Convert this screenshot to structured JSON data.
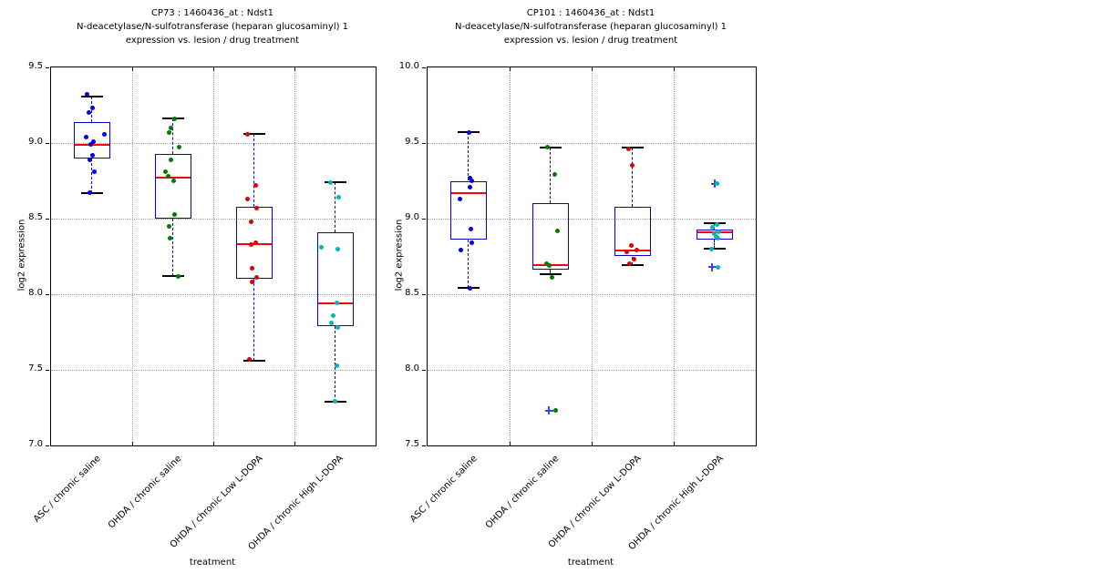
{
  "chart_data": {
    "type": "boxplot",
    "colors": {
      "box": "#0000dd",
      "whisker": "#0000dd",
      "median": "#ff0000",
      "cap": "#000000",
      "grid": "#9e9e9e",
      "flier": "#4040ff"
    },
    "panels": [
      {
        "title_lines": [
          "CP73 : 1460436_at : Ndst1",
          "N-deacetylase/N-sulfotransferase (heparan glucosaminyl) 1",
          "expression vs. lesion / drug treatment"
        ],
        "ylabel": "log2 expression",
        "xlabel": "treatment",
        "ylim": [
          7.0,
          9.5
        ],
        "yticks": [
          9.5,
          9.0,
          8.5,
          8.0,
          7.5,
          7.0
        ],
        "ytick_labels": [
          "9.5",
          "9.0",
          "8.5",
          "8.0",
          "7.5",
          "7.0"
        ],
        "grid": true,
        "categories": [
          "ASC / chronic saline",
          "OHDA / chronic saline",
          "OHDA / chronic Low L-DOPA",
          "OHDA / chronic High L-DOPA"
        ],
        "groups": [
          {
            "name": "ASC / chronic saline",
            "color": "#0000e0",
            "box": {
              "q1": 8.9,
              "median": 8.99,
              "q3": 9.14,
              "lo": 8.67,
              "hi": 9.31
            },
            "points": [
              [
                9.32,
                -5
              ],
              [
                9.23,
                1
              ],
              [
                9.2,
                -3
              ],
              [
                9.06,
                14
              ],
              [
                9.04,
                -6
              ],
              [
                9.01,
                2
              ],
              [
                8.99,
                -1
              ],
              [
                8.92,
                1
              ],
              [
                8.89,
                -2
              ],
              [
                8.81,
                3
              ],
              [
                8.67,
                -2
              ]
            ],
            "fliers": []
          },
          {
            "name": "OHDA / chronic saline",
            "color": "#007a00",
            "box": {
              "q1": 8.5,
              "median": 8.77,
              "q3": 8.93,
              "lo": 8.12,
              "hi": 9.16
            },
            "points": [
              [
                9.16,
                2
              ],
              [
                9.1,
                -2
              ],
              [
                9.07,
                -4
              ],
              [
                8.97,
                7
              ],
              [
                8.89,
                -2
              ],
              [
                8.81,
                -8
              ],
              [
                8.78,
                -5
              ],
              [
                8.75,
                1
              ],
              [
                8.53,
                2
              ],
              [
                8.45,
                -4
              ],
              [
                8.37,
                -3
              ],
              [
                8.12,
                6
              ]
            ],
            "fliers": []
          },
          {
            "name": "OHDA / chronic Low L-DOPA",
            "color": "#e00000",
            "box": {
              "q1": 8.1,
              "median": 8.33,
              "q3": 8.58,
              "lo": 7.56,
              "hi": 9.06
            },
            "points": [
              [
                9.06,
                -7
              ],
              [
                8.72,
                2
              ],
              [
                8.63,
                -7
              ],
              [
                8.57,
                3
              ],
              [
                8.48,
                -3
              ],
              [
                8.34,
                2
              ],
              [
                8.33,
                -3
              ],
              [
                8.17,
                -2
              ],
              [
                8.11,
                3
              ],
              [
                8.08,
                -2
              ],
              [
                7.57,
                -5
              ]
            ],
            "fliers": []
          },
          {
            "name": "OHDA / chronic High L-DOPA",
            "color": "#00b7b7",
            "box": {
              "q1": 7.79,
              "median": 7.94,
              "q3": 8.41,
              "lo": 7.29,
              "hi": 8.74
            },
            "points": [
              [
                8.74,
                -5
              ],
              [
                8.64,
                4
              ],
              [
                8.31,
                -15
              ],
              [
                8.3,
                3
              ],
              [
                7.94,
                2
              ],
              [
                7.86,
                -2
              ],
              [
                7.81,
                -4
              ],
              [
                7.78,
                3
              ],
              [
                7.53,
                2
              ],
              [
                7.29,
                0
              ]
            ],
            "fliers": []
          }
        ]
      },
      {
        "title_lines": [
          "CP101 : 1460436_at : Ndst1",
          "N-deacetylase/N-sulfotransferase (heparan glucosaminyl) 1",
          "expression vs. lesion / drug treatment"
        ],
        "ylabel": "log2 expression",
        "xlabel": "treatment",
        "ylim": [
          7.5,
          10.0
        ],
        "yticks": [
          10.0,
          9.5,
          9.0,
          8.5,
          8.0,
          7.5
        ],
        "ytick_labels": [
          "10.0",
          "9.5",
          "9.0",
          "8.5",
          "8.0",
          "7.5"
        ],
        "grid": true,
        "categories": [
          "ASC / chronic saline",
          "OHDA / chronic saline",
          "OHDA / chronic Low L-DOPA",
          "OHDA / chronic High L-DOPA"
        ],
        "groups": [
          {
            "name": "ASC / chronic saline",
            "color": "#0000e0",
            "box": {
              "q1": 8.86,
              "median": 9.17,
              "q3": 9.25,
              "lo": 8.54,
              "hi": 9.57
            },
            "points": [
              [
                9.57,
                0
              ],
              [
                9.27,
                1
              ],
              [
                9.25,
                3
              ],
              [
                9.21,
                1
              ],
              [
                9.13,
                -10
              ],
              [
                8.93,
                2
              ],
              [
                8.84,
                3
              ],
              [
                8.79,
                -9
              ],
              [
                8.54,
                1
              ]
            ],
            "fliers": []
          },
          {
            "name": "OHDA / chronic saline",
            "color": "#007a00",
            "box": {
              "q1": 8.66,
              "median": 8.69,
              "q3": 9.1,
              "lo": 8.63,
              "hi": 9.47
            },
            "points": [
              [
                9.47,
                -4
              ],
              [
                9.29,
                4
              ],
              [
                8.92,
                7
              ],
              [
                8.7,
                -5
              ],
              [
                8.69,
                -2
              ],
              [
                8.61,
                1
              ],
              [
                7.73,
                5
              ]
            ],
            "fliers": [
              [
                7.73,
                -2
              ]
            ]
          },
          {
            "name": "OHDA / chronic Low L-DOPA",
            "color": "#e00000",
            "box": {
              "q1": 8.75,
              "median": 8.79,
              "q3": 9.08,
              "lo": 8.69,
              "hi": 9.47
            },
            "points": [
              [
                9.46,
                -5
              ],
              [
                9.35,
                -1
              ],
              [
                8.82,
                -2
              ],
              [
                8.79,
                4
              ],
              [
                8.78,
                -7
              ],
              [
                8.73,
                1
              ],
              [
                8.7,
                -4
              ]
            ],
            "fliers": []
          },
          {
            "name": "OHDA / chronic High L-DOPA",
            "color": "#00b7b7",
            "box": {
              "q1": 8.86,
              "median": 8.91,
              "q3": 8.93,
              "lo": 8.8,
              "hi": 8.97
            },
            "points": [
              [
                9.23,
                2
              ],
              [
                8.96,
                2
              ],
              [
                8.94,
                -3
              ],
              [
                8.91,
                4
              ],
              [
                8.9,
                -1
              ],
              [
                8.88,
                1
              ],
              [
                8.87,
                3
              ],
              [
                8.8,
                -4
              ],
              [
                8.68,
                3
              ]
            ],
            "fliers": [
              [
                9.23,
                0
              ],
              [
                8.68,
                -3
              ]
            ]
          }
        ]
      }
    ]
  }
}
